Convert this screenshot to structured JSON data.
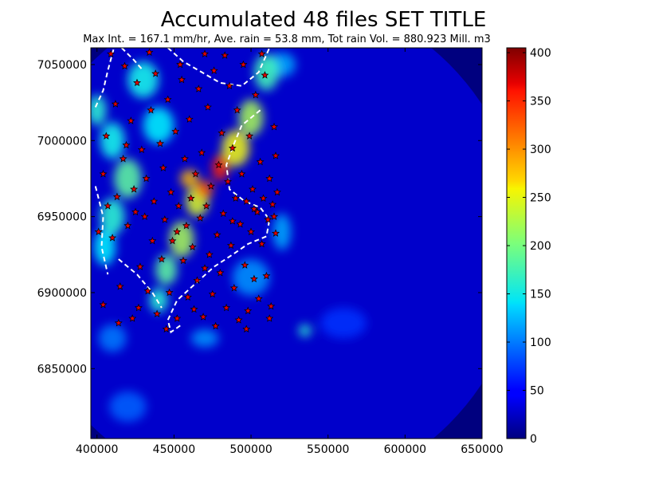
{
  "chart_data": {
    "type": "heatmap",
    "title": "Accumulated 48 files SET TITLE",
    "subtitle": "Max Int. = 167.1 mm/hr, Ave. rain = 53.8 mm, Tot rain Vol. = 880.923 Mill. m3",
    "xlabel": "",
    "ylabel": "",
    "xlim": [
      396000,
      650000
    ],
    "ylim": [
      6804000,
      7061000
    ],
    "xticks": [
      400000,
      450000,
      500000,
      550000,
      600000,
      650000
    ],
    "xtick_labels": [
      "400000",
      "450000",
      "500000",
      "550000",
      "600000",
      "650000"
    ],
    "yticks": [
      6850000,
      6900000,
      6950000,
      7000000,
      7050000
    ],
    "ytick_labels": [
      "6850000",
      "6900000",
      "6950000",
      "7000000",
      "7050000"
    ],
    "colorbar": {
      "min": 0,
      "max": 405,
      "colormap": "jet",
      "ticks": [
        0,
        50,
        100,
        150,
        200,
        250,
        300,
        350,
        400
      ],
      "tick_labels": [
        "0",
        "50",
        "100",
        "150",
        "200",
        "250",
        "300",
        "350",
        "400"
      ]
    },
    "radar_coverage": {
      "center": [
        512000,
        6932000
      ],
      "radius": 165000
    },
    "background_value": 30,
    "rain_features": [
      {
        "x": 480000,
        "y": 6982000,
        "value": 340,
        "sx": 5500,
        "sy": 8500
      },
      {
        "x": 470000,
        "y": 6968000,
        "value": 320,
        "sx": 5500,
        "sy": 6000
      },
      {
        "x": 460000,
        "y": 6975000,
        "value": 280,
        "sx": 6000,
        "sy": 6000
      },
      {
        "x": 465000,
        "y": 6960000,
        "value": 240,
        "sx": 7500,
        "sy": 10000
      },
      {
        "x": 455000,
        "y": 6935000,
        "value": 220,
        "sx": 8000,
        "sy": 12000
      },
      {
        "x": 445000,
        "y": 6915000,
        "value": 190,
        "sx": 7000,
        "sy": 10000
      },
      {
        "x": 440000,
        "y": 6895000,
        "value": 170,
        "sx": 6000,
        "sy": 8000
      },
      {
        "x": 490000,
        "y": 6995000,
        "value": 250,
        "sx": 9000,
        "sy": 12000
      },
      {
        "x": 500000,
        "y": 7015000,
        "value": 220,
        "sx": 8000,
        "sy": 12000
      },
      {
        "x": 510000,
        "y": 7045000,
        "value": 180,
        "sx": 8000,
        "sy": 12000
      },
      {
        "x": 420000,
        "y": 6975000,
        "value": 190,
        "sx": 9000,
        "sy": 13000
      },
      {
        "x": 410000,
        "y": 6950000,
        "value": 170,
        "sx": 8000,
        "sy": 12000
      },
      {
        "x": 405000,
        "y": 6930000,
        "value": 150,
        "sx": 7000,
        "sy": 12000
      },
      {
        "x": 410000,
        "y": 7000000,
        "value": 160,
        "sx": 8000,
        "sy": 12000
      },
      {
        "x": 400000,
        "y": 7020000,
        "value": 170,
        "sx": 6000,
        "sy": 10000
      },
      {
        "x": 430000,
        "y": 7040000,
        "value": 160,
        "sx": 10000,
        "sy": 12000
      },
      {
        "x": 440000,
        "y": 7010000,
        "value": 150,
        "sx": 10000,
        "sy": 12000
      },
      {
        "x": 520000,
        "y": 6940000,
        "value": 120,
        "sx": 6000,
        "sy": 12000
      },
      {
        "x": 535000,
        "y": 6875000,
        "value": 170,
        "sx": 4000,
        "sy": 4000
      },
      {
        "x": 470000,
        "y": 6870000,
        "value": 110,
        "sx": 9000,
        "sy": 6000
      },
      {
        "x": 410000,
        "y": 6870000,
        "value": 100,
        "sx": 9000,
        "sy": 9000
      },
      {
        "x": 500000,
        "y": 6910000,
        "value": 110,
        "sx": 12000,
        "sy": 12000
      },
      {
        "x": 420000,
        "y": 6825000,
        "value": 90,
        "sx": 12000,
        "sy": 10000
      },
      {
        "x": 520000,
        "y": 7050000,
        "value": 120,
        "sx": 9000,
        "sy": 8000
      },
      {
        "x": 560000,
        "y": 6880000,
        "value": 70,
        "sx": 15000,
        "sy": 10000
      }
    ],
    "boundary_lines": [
      [
        [
          399000,
          7022000
        ],
        [
          404000,
          7033000
        ],
        [
          407000,
          7046000
        ],
        [
          411000,
          7061000
        ]
      ],
      [
        [
          416000,
          7061000
        ],
        [
          424000,
          7053000
        ],
        [
          430000,
          7046000
        ]
      ],
      [
        [
          446000,
          7061000
        ],
        [
          456000,
          7052000
        ],
        [
          468000,
          7045000
        ],
        [
          480000,
          7038000
        ],
        [
          494000,
          7036000
        ],
        [
          505000,
          7045000
        ],
        [
          512000,
          7061000
        ]
      ],
      [
        [
          506000,
          7020000
        ],
        [
          494000,
          7010000
        ],
        [
          489000,
          6998000
        ],
        [
          484000,
          6984000
        ],
        [
          486000,
          6968000
        ],
        [
          496000,
          6960000
        ],
        [
          506000,
          6956000
        ],
        [
          512000,
          6948000
        ],
        [
          510000,
          6937000
        ],
        [
          498000,
          6932000
        ],
        [
          488000,
          6925000
        ],
        [
          476000,
          6917000
        ],
        [
          464000,
          6906000
        ],
        [
          452000,
          6895000
        ],
        [
          446000,
          6882000
        ],
        [
          448000,
          6874000
        ],
        [
          455000,
          6879000
        ]
      ],
      [
        [
          399000,
          6970000
        ],
        [
          404000,
          6950000
        ],
        [
          403000,
          6930000
        ],
        [
          407000,
          6912000
        ]
      ],
      [
        [
          414000,
          6922000
        ],
        [
          426000,
          6912000
        ],
        [
          436000,
          6900000
        ],
        [
          442000,
          6890000
        ]
      ]
    ],
    "stations": [
      [
        404000,
        6978000
      ],
      [
        406000,
        7003000
      ],
      [
        410000,
        6936000
      ],
      [
        412000,
        7024000
      ],
      [
        413000,
        6963000
      ],
      [
        415000,
        6904000
      ],
      [
        417000,
        6988000
      ],
      [
        418000,
        7049000
      ],
      [
        420000,
        6944000
      ],
      [
        422000,
        7013000
      ],
      [
        423000,
        6883000
      ],
      [
        424000,
        6968000
      ],
      [
        426000,
        7038000
      ],
      [
        428000,
        6917000
      ],
      [
        429000,
        6994000
      ],
      [
        431000,
        6950000
      ],
      [
        432000,
        6975000
      ],
      [
        433000,
        6901000
      ],
      [
        435000,
        7020000
      ],
      [
        436000,
        6934000
      ],
      [
        437000,
        6960000
      ],
      [
        438000,
        7044000
      ],
      [
        439000,
        6886000
      ],
      [
        441000,
        6998000
      ],
      [
        442000,
        6922000
      ],
      [
        443000,
        6982000
      ],
      [
        444000,
        6948000
      ],
      [
        446000,
        7027000
      ],
      [
        447000,
        6900000
      ],
      [
        448000,
        6966000
      ],
      [
        449000,
        6934000
      ],
      [
        451000,
        7006000
      ],
      [
        452000,
        6883000
      ],
      [
        453000,
        6957000
      ],
      [
        454000,
        7050000
      ],
      [
        456000,
        6921000
      ],
      [
        457000,
        6988000
      ],
      [
        458000,
        6944000
      ],
      [
        459000,
        6897000
      ],
      [
        460000,
        7014000
      ],
      [
        461000,
        6962000
      ],
      [
        462000,
        6930000
      ],
      [
        464000,
        6978000
      ],
      [
        465000,
        6908000
      ],
      [
        466000,
        7034000
      ],
      [
        467000,
        6949000
      ],
      [
        468000,
        6992000
      ],
      [
        469000,
        6884000
      ],
      [
        471000,
        6957000
      ],
      [
        472000,
        7022000
      ],
      [
        473000,
        6925000
      ],
      [
        474000,
        6970000
      ],
      [
        475000,
        6899000
      ],
      [
        476000,
        7046000
      ],
      [
        478000,
        6938000
      ],
      [
        479000,
        6984000
      ],
      [
        480000,
        6913000
      ],
      [
        481000,
        7005000
      ],
      [
        482000,
        6952000
      ],
      [
        484000,
        6890000
      ],
      [
        485000,
        6973000
      ],
      [
        486000,
        7036000
      ],
      [
        487000,
        6931000
      ],
      [
        488000,
        6995000
      ],
      [
        489000,
        6903000
      ],
      [
        490000,
        6962000
      ],
      [
        491000,
        7020000
      ],
      [
        492000,
        6882000
      ],
      [
        493000,
        6945000
      ],
      [
        494000,
        6978000
      ],
      [
        495000,
        7050000
      ],
      [
        496000,
        6918000
      ],
      [
        497000,
        6960000
      ],
      [
        498000,
        6888000
      ],
      [
        499000,
        7003000
      ],
      [
        500000,
        6940000
      ],
      [
        501000,
        6968000
      ],
      [
        502000,
        6909000
      ],
      [
        503000,
        7030000
      ],
      [
        504000,
        6953000
      ],
      [
        505000,
        6896000
      ],
      [
        506000,
        6986000
      ],
      [
        507000,
        6932000
      ],
      [
        508000,
        6962000
      ],
      [
        509000,
        7043000
      ],
      [
        510000,
        6911000
      ],
      [
        511000,
        6948000
      ],
      [
        512000,
        6975000
      ],
      [
        513000,
        6891000
      ],
      [
        514000,
        6958000
      ],
      [
        515000,
        7009000
      ],
      [
        516000,
        6939000
      ],
      [
        517000,
        6966000
      ],
      [
        404000,
        6892000
      ],
      [
        407000,
        6957000
      ],
      [
        409000,
        7057000
      ],
      [
        414000,
        6880000
      ],
      [
        419000,
        6997000
      ],
      [
        427000,
        6890000
      ],
      [
        434000,
        7058000
      ],
      [
        445000,
        6876000
      ],
      [
        455000,
        7040000
      ],
      [
        463000,
        6889000
      ],
      [
        470000,
        7057000
      ],
      [
        477000,
        6878000
      ],
      [
        483000,
        7056000
      ],
      [
        497000,
        6876000
      ],
      [
        507000,
        7057000
      ],
      [
        512000,
        6883000
      ],
      [
        516000,
        6990000
      ],
      [
        401000,
        6940000
      ],
      [
        425000,
        6953000
      ],
      [
        452000,
        6940000
      ],
      [
        470000,
        6916000
      ],
      [
        488000,
        6947000
      ],
      [
        502000,
        6955000
      ],
      [
        515000,
        6950000
      ]
    ]
  }
}
